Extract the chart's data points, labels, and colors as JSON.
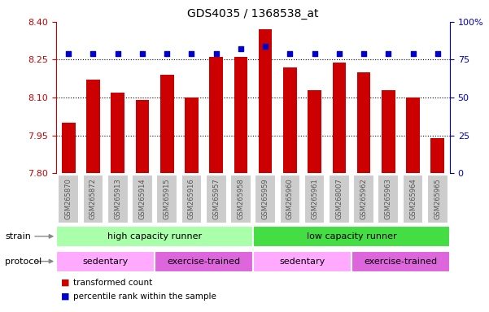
{
  "title": "GDS4035 / 1368538_at",
  "samples": [
    "GSM265870",
    "GSM265872",
    "GSM265913",
    "GSM265914",
    "GSM265915",
    "GSM265916",
    "GSM265957",
    "GSM265958",
    "GSM265959",
    "GSM265960",
    "GSM265961",
    "GSM268007",
    "GSM265962",
    "GSM265963",
    "GSM265964",
    "GSM265965"
  ],
  "bar_values": [
    8.0,
    8.17,
    8.12,
    8.09,
    8.19,
    8.1,
    8.26,
    8.26,
    8.37,
    8.22,
    8.13,
    8.24,
    8.2,
    8.13,
    8.1,
    7.94
  ],
  "percentile_values": [
    79,
    79,
    79,
    79,
    79,
    79,
    79,
    82,
    84,
    79,
    79,
    79,
    79,
    79,
    79,
    79
  ],
  "bar_color": "#cc0000",
  "dot_color": "#0000cc",
  "ylim_left": [
    7.8,
    8.4
  ],
  "ylim_right": [
    0,
    100
  ],
  "yticks_left": [
    7.8,
    7.95,
    8.1,
    8.25,
    8.4
  ],
  "yticks_right": [
    0,
    25,
    50,
    75,
    100
  ],
  "grid_ticks": [
    7.95,
    8.1,
    8.25
  ],
  "strain_groups": [
    {
      "label": "high capacity runner",
      "start": 0,
      "end": 8,
      "color": "#aaffaa"
    },
    {
      "label": "low capacity runner",
      "start": 8,
      "end": 16,
      "color": "#44dd44"
    }
  ],
  "protocol_groups": [
    {
      "label": "sedentary",
      "start": 0,
      "end": 4,
      "color": "#ffaaff"
    },
    {
      "label": "exercise-trained",
      "start": 4,
      "end": 8,
      "color": "#dd66dd"
    },
    {
      "label": "sedentary",
      "start": 8,
      "end": 12,
      "color": "#ffaaff"
    },
    {
      "label": "exercise-trained",
      "start": 12,
      "end": 16,
      "color": "#dd66dd"
    }
  ],
  "tick_label_color": "#555555",
  "left_axis_color": "#cc0000",
  "right_axis_color": "#0000cc",
  "plot_bg_color": "#ffffff",
  "xlabel_bg_color": "#cccccc"
}
